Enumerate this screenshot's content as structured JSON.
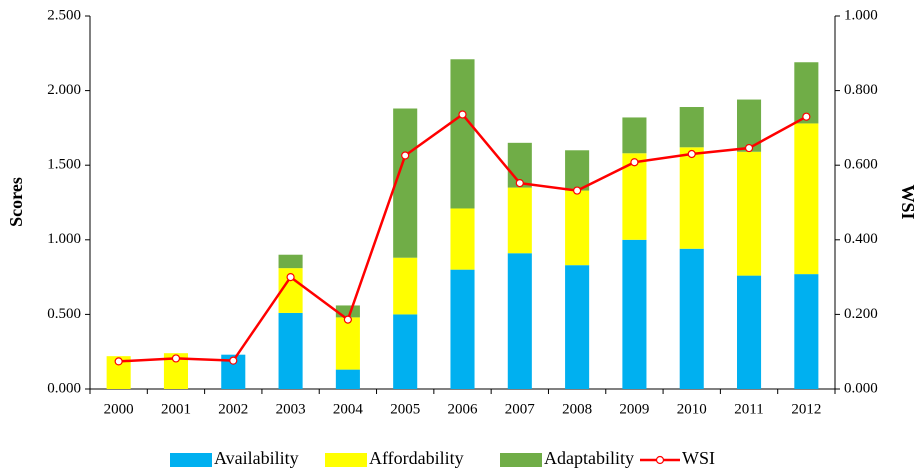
{
  "chart_data": {
    "type": "bar",
    "stacked": true,
    "y_label": "Scores",
    "y2_label": "WSI",
    "categories": [
      "2000",
      "2001",
      "2002",
      "2003",
      "2004",
      "2005",
      "2006",
      "2007",
      "2008",
      "2009",
      "2010",
      "2011",
      "2012"
    ],
    "series": [
      {
        "name": "Availability",
        "color": "#00b0f0",
        "values": [
          0,
          0,
          0.23,
          0.51,
          0.13,
          0.5,
          0.8,
          0.91,
          0.83,
          1.0,
          0.94,
          0.76,
          0.77
        ]
      },
      {
        "name": "Affordability",
        "color": "#ffff00",
        "values": [
          0.22,
          0.24,
          0,
          0.3,
          0.35,
          0.38,
          0.41,
          0.44,
          0.5,
          0.58,
          0.68,
          0.83,
          1.01
        ]
      },
      {
        "name": "Adaptability",
        "color": "#70ad47",
        "values": [
          0,
          0,
          0,
          0.09,
          0.08,
          1.0,
          1.0,
          0.3,
          0.27,
          0.24,
          0.27,
          0.35,
          0.41
        ]
      },
      {
        "name": "WSI",
        "type": "line",
        "axis": "y2",
        "color": "#ff0000",
        "values": [
          0.074,
          0.082,
          0.076,
          0.3,
          0.186,
          0.626,
          0.736,
          0.552,
          0.532,
          0.608,
          0.63,
          0.646,
          0.73
        ]
      }
    ],
    "ylim": [
      0,
      2.5
    ],
    "yticks": [
      {
        "value": 0,
        "label": "0.000"
      },
      {
        "value": 0.5,
        "label": "0.500"
      },
      {
        "value": 1,
        "label": "1.000"
      },
      {
        "value": 1.5,
        "label": "1.500"
      },
      {
        "value": 2,
        "label": "2.000"
      },
      {
        "value": 2.5,
        "label": "2.500"
      }
    ],
    "y2lim": [
      0,
      1
    ],
    "y2ticks": [
      {
        "value": 0,
        "label": "0.000"
      },
      {
        "value": 0.2,
        "label": "0.200"
      },
      {
        "value": 0.4,
        "label": "0.400"
      },
      {
        "value": 0.6,
        "label": "0.600"
      },
      {
        "value": 0.8,
        "label": "0.800"
      },
      {
        "value": 1,
        "label": "1.000"
      }
    ],
    "grid": false,
    "legend": "bottom"
  }
}
